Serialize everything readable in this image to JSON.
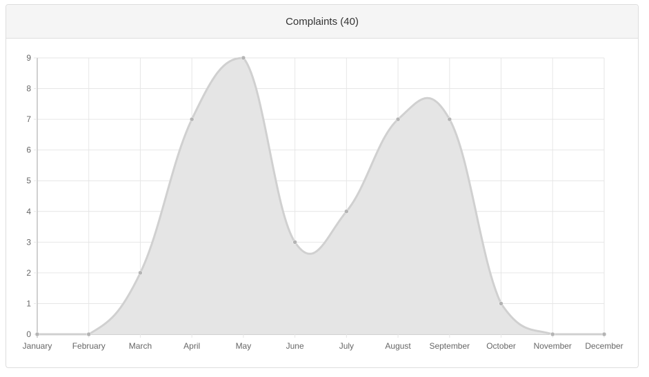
{
  "panel": {
    "title": "Complaints (40)"
  },
  "chart_data": {
    "type": "area",
    "title": "",
    "xlabel": "",
    "ylabel": "",
    "categories": [
      "January",
      "February",
      "March",
      "April",
      "May",
      "June",
      "July",
      "August",
      "September",
      "October",
      "November",
      "December"
    ],
    "values": [
      0,
      0,
      2,
      7,
      9,
      3,
      4,
      7,
      7,
      1,
      0,
      0
    ],
    "ylim": [
      0,
      9
    ],
    "yticks": [
      0,
      1,
      2,
      3,
      4,
      5,
      6,
      7,
      8,
      9
    ],
    "grid": true,
    "legend": "none",
    "colors": {
      "fill": "#e5e5e5",
      "line": "#d0d0d0",
      "point": "#b4b4b4",
      "grid": "#e6e6e6",
      "axis": "#a0a0a0",
      "tick_text": "#666666"
    }
  }
}
